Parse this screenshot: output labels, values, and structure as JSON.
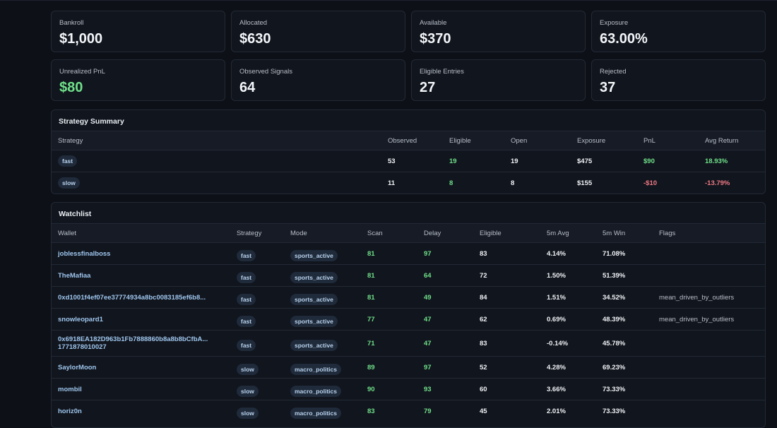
{
  "stats": [
    {
      "label": "Bankroll",
      "value": "$1,000"
    },
    {
      "label": "Allocated",
      "value": "$630"
    },
    {
      "label": "Available",
      "value": "$370"
    },
    {
      "label": "Exposure",
      "value": "63.00%"
    },
    {
      "label": "Unrealized PnL",
      "value": "$80",
      "tone": "positive"
    },
    {
      "label": "Observed Signals",
      "value": "64"
    },
    {
      "label": "Eligible Entries",
      "value": "27"
    },
    {
      "label": "Rejected",
      "value": "37"
    }
  ],
  "strategy_summary": {
    "title": "Strategy Summary",
    "columns": [
      "Strategy",
      "Observed",
      "Eligible",
      "Open",
      "Exposure",
      "PnL",
      "Avg Return"
    ],
    "rows": [
      [
        "fast",
        "53",
        "19",
        "19",
        "$475",
        "$90",
        "18.93%"
      ],
      [
        "slow",
        "11",
        "8",
        "8",
        "$155",
        "-$10",
        "-13.79%"
      ]
    ]
  },
  "watchlist": {
    "title": "Watchlist",
    "columns": [
      "Wallet",
      "Strategy",
      "Mode",
      "Scan",
      "Delay",
      "Eligible",
      "5m Avg",
      "5m Win",
      "Flags"
    ],
    "rows": [
      {
        "wallet": "joblessfinalboss",
        "strategy": "fast",
        "mode": "sports_active",
        "scan": "81",
        "delay": "97",
        "eligible": "83",
        "avg": "4.14%",
        "win": "71.08%"
      },
      {
        "wallet": "TheMafiaa",
        "strategy": "fast",
        "mode": "sports_active",
        "scan": "81",
        "delay": "64",
        "eligible": "72",
        "avg": "1.50%",
        "win": "51.39%"
      },
      {
        "wallet": "0xd1001f4ef07ee37774934a8bc0083185ef6b8...",
        "strategy": "fast",
        "mode": "sports_active",
        "scan": "81",
        "delay": "49",
        "eligible": "84",
        "avg": "1.51%",
        "win": "34.52%",
        "flags": "mean_driven_by_outliers"
      },
      {
        "wallet": "snowleopard1",
        "strategy": "fast",
        "mode": "sports_active",
        "scan": "77",
        "delay": "47",
        "eligible": "62",
        "avg": "0.69%",
        "win": "48.39%",
        "flags": "mean_driven_by_outliers"
      },
      {
        "wallet": "0x6918EA182D963b1Fb7888860b8a8b8bCfbA...",
        "wallet_sub": "1771878010027",
        "strategy": "fast",
        "mode": "sports_active",
        "scan": "71",
        "delay": "47",
        "eligible": "83",
        "avg": "-0.14%",
        "win": "45.78%"
      },
      {
        "wallet": "SaylorMoon",
        "strategy": "slow",
        "mode": "macro_politics",
        "scan": "89",
        "delay": "97",
        "eligible": "52",
        "avg": "4.28%",
        "win": "69.23%"
      },
      {
        "wallet": "mombil",
        "strategy": "slow",
        "mode": "macro_politics",
        "scan": "90",
        "delay": "93",
        "eligible": "60",
        "avg": "3.66%",
        "win": "73.33%"
      },
      {
        "wallet": "horiz0n",
        "strategy": "slow",
        "mode": "macro_politics",
        "scan": "83",
        "delay": "79",
        "eligible": "45",
        "avg": "2.01%",
        "win": "73.33%"
      }
    ]
  }
}
